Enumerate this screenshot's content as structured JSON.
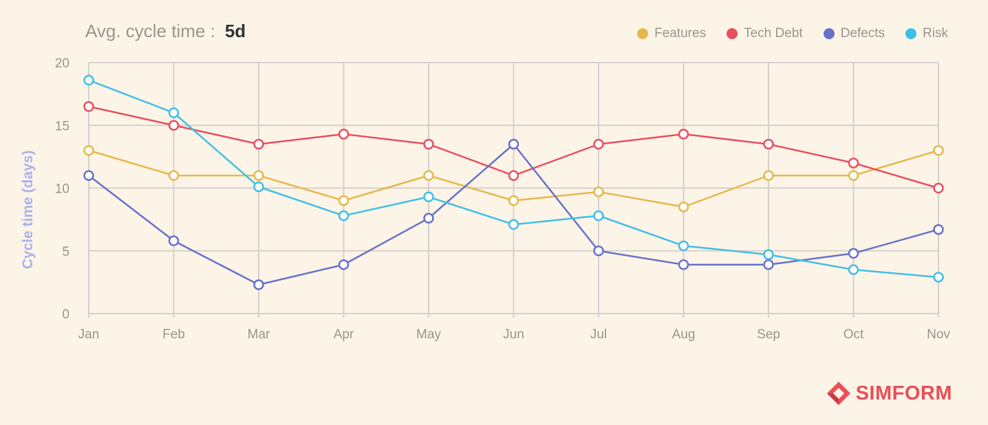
{
  "header": {
    "label": "Avg. cycle time :",
    "value": "5d"
  },
  "brand": {
    "name": "SIMFORM",
    "color": "#ea4e58"
  },
  "chart_data": {
    "type": "line",
    "title": "Avg. cycle time : 5d",
    "xlabel": "",
    "ylabel": "Cycle time (days)",
    "ylim": [
      0,
      20
    ],
    "yticks": [
      0,
      5,
      10,
      15,
      20
    ],
    "grid": true,
    "legend_position": "top-right",
    "categories": [
      "Jan",
      "Feb",
      "Mar",
      "Apr",
      "May",
      "Jun",
      "Jul",
      "Aug",
      "Sep",
      "Oct",
      "Nov"
    ],
    "series": [
      {
        "name": "Features",
        "color": "#e5b84a",
        "values": [
          13,
          11,
          11,
          9,
          11,
          9,
          9.7,
          8.5,
          11,
          11,
          13
        ]
      },
      {
        "name": "Tech Debt",
        "color": "#e84f5f",
        "values": [
          16.5,
          15,
          13.5,
          14.3,
          13.5,
          11,
          13.5,
          14.3,
          13.5,
          12,
          10
        ]
      },
      {
        "name": "Defects",
        "color": "#6771c9",
        "values": [
          11,
          5.8,
          2.3,
          3.9,
          7.6,
          13.5,
          5,
          3.9,
          3.9,
          4.8,
          6.7
        ]
      },
      {
        "name": "Risk",
        "color": "#3fbfe6",
        "values": [
          18.6,
          16,
          10.1,
          7.8,
          9.3,
          7.1,
          7.8,
          5.4,
          4.7,
          3.5,
          2.9
        ]
      }
    ]
  }
}
